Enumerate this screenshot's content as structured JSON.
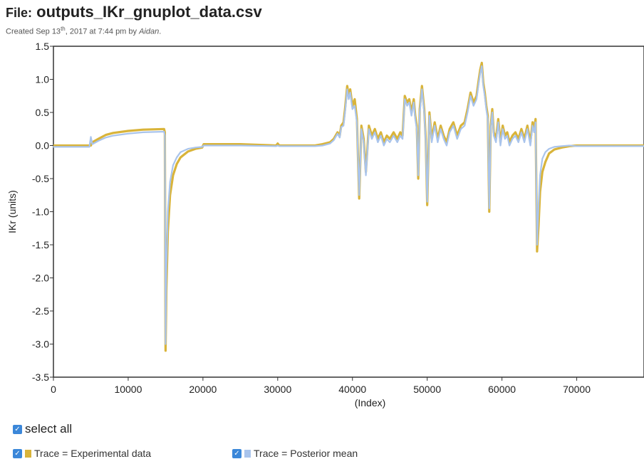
{
  "header": {
    "file_prefix": "File:",
    "file_name": "outputs_IKr_gnuplot_data.csv",
    "created_prefix": "Created Sep 13",
    "created_sup": "th",
    "created_suffix": ", 2017 at 7:44 pm by ",
    "author": "Aidan",
    "author_end": "."
  },
  "controls": {
    "select_all_label": "select all",
    "checkbox_glyph": "✓",
    "traces": [
      {
        "label": "Trace = Experimental data",
        "color": "#d9b43a",
        "checked": true
      },
      {
        "label": "Trace = Posterior mean",
        "color": "#a9c4ec",
        "checked": true
      }
    ]
  },
  "chart_data": {
    "type": "line",
    "xlabel": "(Index)",
    "ylabel": "IKr (units)",
    "xlim": [
      0,
      79000
    ],
    "ylim": [
      -3.5,
      1.5
    ],
    "xticks": [
      0,
      10000,
      20000,
      30000,
      40000,
      50000,
      60000,
      70000
    ],
    "yticks": [
      1.5,
      1.0,
      0.5,
      0.0,
      -0.5,
      -1.0,
      -1.5,
      -2.0,
      -2.5,
      -3.0,
      -3.5
    ],
    "grid": false,
    "series": [
      {
        "name": "Trace = Experimental data",
        "color": "#d9b43a",
        "x": [
          0,
          4800,
          5000,
          5200,
          6000,
          7000,
          8000,
          10000,
          12000,
          14800,
          14900,
          15000,
          15100,
          15300,
          15600,
          16000,
          16500,
          17000,
          18000,
          19000,
          19900,
          20100,
          25000,
          29800,
          30000,
          30200,
          35000,
          36000,
          37000,
          37500,
          38000,
          38300,
          38500,
          38800,
          39000,
          39300,
          39500,
          39700,
          40000,
          40300,
          40600,
          40900,
          41200,
          41500,
          41800,
          42200,
          42600,
          43000,
          43400,
          43800,
          44200,
          44600,
          45000,
          45500,
          46000,
          46400,
          46700,
          47000,
          47300,
          47600,
          47900,
          48200,
          48400,
          48600,
          48800,
          49000,
          49300,
          49600,
          49800,
          50000,
          50300,
          50600,
          51000,
          51400,
          51800,
          52200,
          52600,
          53000,
          53500,
          54000,
          54500,
          55000,
          55400,
          55800,
          56200,
          56600,
          56900,
          57100,
          57300,
          57500,
          57700,
          57900,
          58100,
          58300,
          58500,
          58700,
          58900,
          59200,
          59500,
          59800,
          60100,
          60400,
          60700,
          61000,
          61400,
          61800,
          62200,
          62600,
          63000,
          63400,
          63800,
          64100,
          64300,
          64500,
          64700,
          64900,
          65100,
          65400,
          65800,
          66300,
          67000,
          68000,
          69000,
          70000,
          75000,
          79000
        ],
        "y": [
          0.0,
          0.0,
          0.0,
          0.05,
          0.1,
          0.16,
          0.19,
          0.22,
          0.24,
          0.25,
          0.2,
          -3.1,
          -2.2,
          -1.3,
          -0.75,
          -0.45,
          -0.28,
          -0.18,
          -0.09,
          -0.05,
          -0.03,
          0.02,
          0.02,
          0.0,
          0.03,
          0.0,
          0.0,
          0.02,
          0.05,
          0.1,
          0.2,
          0.15,
          0.3,
          0.35,
          0.55,
          0.9,
          0.75,
          0.85,
          0.6,
          0.7,
          0.4,
          -0.8,
          0.3,
          0.1,
          -0.4,
          0.3,
          0.15,
          0.25,
          0.1,
          0.2,
          0.05,
          0.15,
          0.1,
          0.2,
          0.1,
          0.2,
          0.15,
          0.75,
          0.65,
          0.7,
          0.5,
          0.7,
          0.45,
          0.3,
          -0.5,
          0.55,
          0.9,
          0.55,
          0.1,
          -0.9,
          0.5,
          0.1,
          0.35,
          0.1,
          0.3,
          0.15,
          0.05,
          0.25,
          0.35,
          0.15,
          0.3,
          0.35,
          0.55,
          0.8,
          0.65,
          0.75,
          1.0,
          1.15,
          1.25,
          0.95,
          0.8,
          0.6,
          0.45,
          -1.0,
          0.3,
          0.55,
          0.2,
          0.1,
          0.4,
          0.05,
          0.3,
          0.15,
          0.2,
          0.05,
          0.15,
          0.2,
          0.1,
          0.25,
          0.1,
          0.3,
          0.05,
          0.35,
          0.25,
          0.4,
          -1.6,
          -1.2,
          -0.7,
          -0.4,
          -0.25,
          -0.12,
          -0.06,
          -0.03,
          -0.01,
          0.0,
          0.0,
          0.0
        ]
      },
      {
        "name": "Trace = Posterior mean",
        "color": "#a9c4ec",
        "x": [
          0,
          4800,
          5000,
          5200,
          6000,
          7000,
          8000,
          10000,
          12000,
          14800,
          14900,
          15000,
          15100,
          15300,
          15600,
          16000,
          16500,
          17000,
          18000,
          19000,
          19900,
          20100,
          25000,
          29800,
          30000,
          30200,
          35000,
          36000,
          37000,
          37500,
          38000,
          38300,
          38500,
          38800,
          39000,
          39300,
          39500,
          39700,
          40000,
          40300,
          40600,
          40900,
          41200,
          41500,
          41800,
          42200,
          42600,
          43000,
          43400,
          43800,
          44200,
          44600,
          45000,
          45500,
          46000,
          46400,
          46700,
          47000,
          47300,
          47600,
          47900,
          48200,
          48400,
          48600,
          48800,
          49000,
          49300,
          49600,
          49800,
          50000,
          50300,
          50600,
          51000,
          51400,
          51800,
          52200,
          52600,
          53000,
          53500,
          54000,
          54500,
          55000,
          55400,
          55800,
          56200,
          56600,
          56900,
          57100,
          57300,
          57500,
          57700,
          57900,
          58100,
          58300,
          58500,
          58700,
          58900,
          59200,
          59500,
          59800,
          60100,
          60400,
          60700,
          61000,
          61400,
          61800,
          62200,
          62600,
          63000,
          63400,
          63800,
          64100,
          64300,
          64500,
          64700,
          64900,
          65100,
          65400,
          65800,
          66300,
          67000,
          68000,
          69000,
          70000,
          75000,
          79000
        ],
        "y": [
          -0.02,
          -0.02,
          0.13,
          0.02,
          0.07,
          0.12,
          0.15,
          0.18,
          0.2,
          0.21,
          0.15,
          -3.0,
          -1.9,
          -1.0,
          -0.55,
          -0.3,
          -0.18,
          -0.1,
          -0.05,
          -0.03,
          -0.02,
          0.0,
          0.0,
          -0.01,
          0.0,
          -0.01,
          -0.01,
          0.0,
          0.03,
          0.08,
          0.18,
          0.12,
          0.28,
          0.3,
          0.5,
          0.85,
          0.7,
          0.8,
          0.55,
          0.6,
          0.35,
          -0.75,
          0.25,
          0.05,
          -0.45,
          0.25,
          0.1,
          0.2,
          0.05,
          0.15,
          0.0,
          0.1,
          0.05,
          0.15,
          0.05,
          0.15,
          0.1,
          0.7,
          0.6,
          0.65,
          0.45,
          0.65,
          0.4,
          0.25,
          -0.45,
          0.5,
          0.85,
          0.5,
          0.05,
          -0.85,
          0.45,
          0.05,
          0.3,
          0.05,
          0.25,
          0.1,
          0.0,
          0.2,
          0.3,
          0.1,
          0.25,
          0.3,
          0.5,
          0.75,
          0.6,
          0.7,
          0.95,
          1.1,
          1.2,
          0.9,
          0.75,
          0.55,
          0.4,
          -0.95,
          0.25,
          0.5,
          0.15,
          0.05,
          0.35,
          0.0,
          0.25,
          0.1,
          0.15,
          0.0,
          0.1,
          0.15,
          0.05,
          0.2,
          0.05,
          0.25,
          0.0,
          0.3,
          0.2,
          0.35,
          -1.5,
          -0.9,
          -0.45,
          -0.2,
          -0.1,
          -0.05,
          -0.02,
          -0.01,
          0.0,
          -0.01,
          -0.01,
          -0.01
        ]
      }
    ]
  }
}
